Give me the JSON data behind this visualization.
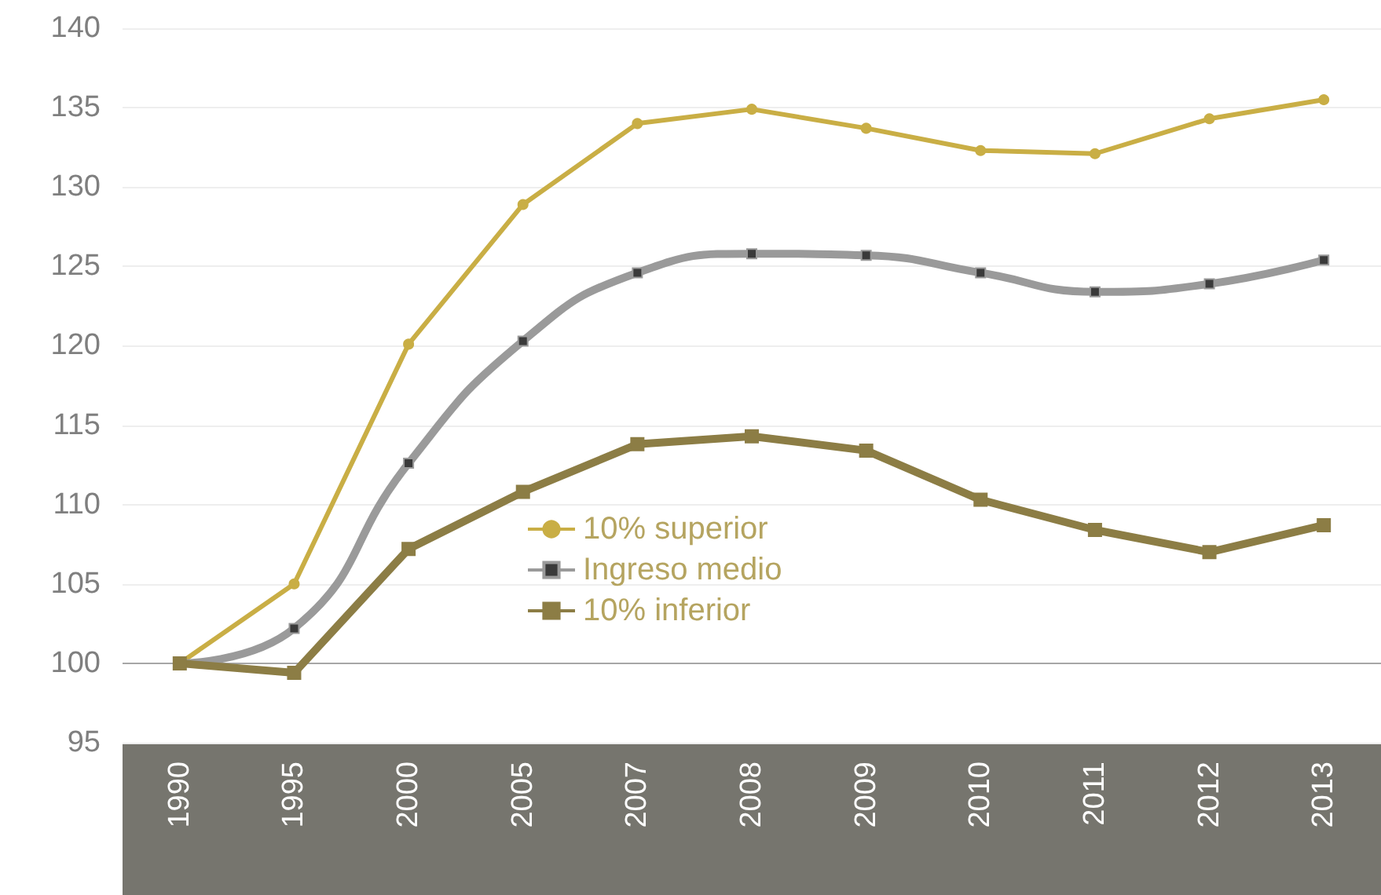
{
  "chart_data": {
    "type": "line",
    "categories": [
      "1990",
      "1995",
      "2000",
      "2005",
      "2007",
      "2008",
      "2009",
      "2010",
      "2011",
      "2012",
      "2013"
    ],
    "series": [
      {
        "name": "10% superior",
        "color": "#c9ae45",
        "marker": "circle",
        "values": [
          100,
          105.0,
          120.1,
          128.9,
          134.0,
          134.9,
          133.7,
          132.3,
          132.1,
          134.3,
          135.5
        ]
      },
      {
        "name": "Ingreso medio",
        "color": "#9a9a9a",
        "marker": "square",
        "values": [
          100,
          102.2,
          112.6,
          120.3,
          124.6,
          125.8,
          125.7,
          124.6,
          123.4,
          123.9,
          125.4
        ]
      },
      {
        "name": "10% inferior",
        "color": "#8c7d45",
        "marker": "square",
        "values": [
          100,
          99.4,
          107.2,
          110.8,
          113.8,
          114.3,
          113.4,
          110.3,
          108.4,
          107.0,
          108.7
        ]
      }
    ],
    "ylim": [
      95,
      140
    ],
    "yticks": [
      95,
      100,
      105,
      110,
      115,
      120,
      125,
      130,
      135,
      140
    ],
    "ref_lines": [
      {
        "axis": "y",
        "value": 100,
        "color": "#a6a6a6"
      }
    ],
    "grid": "y",
    "legend": "bottom"
  }
}
